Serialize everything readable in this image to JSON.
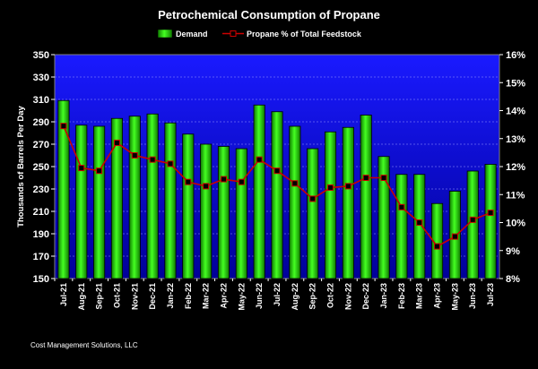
{
  "chart_data": {
    "type": "bar+line",
    "title": "Petrochemical Consumption of Propane",
    "ylabel": "Thousands of Barrels Per Day",
    "ylabel_right": "",
    "footer": "Cost Management Solutions, LLC",
    "categories": [
      "Jul-21",
      "Aug-21",
      "Sep-21",
      "Oct-21",
      "Nov-21",
      "Dec-21",
      "Jan-22",
      "Feb-22",
      "Mar-22",
      "Apr-22",
      "May-22",
      "Jun-22",
      "Jul-22",
      "Aug-22",
      "Sep-22",
      "Oct-22",
      "Nov-22",
      "Dec-22",
      "Jan-23",
      "Feb-23",
      "Mar-23",
      "Apr-23",
      "May-23",
      "Jun-23",
      "Jul-23"
    ],
    "y_left": {
      "min": 150,
      "max": 350,
      "ticks": [
        150,
        170,
        190,
        210,
        230,
        250,
        270,
        290,
        310,
        330,
        350
      ]
    },
    "y_right": {
      "min": 8,
      "max": 16,
      "ticks": [
        "8%",
        "9%",
        "10%",
        "11%",
        "12%",
        "13%",
        "14%",
        "15%",
        "16%"
      ]
    },
    "grid": true,
    "legend_position": "top",
    "series": [
      {
        "name": "Demand",
        "kind": "bar",
        "axis": "left",
        "color": "#22cc00",
        "values": [
          309,
          287,
          286,
          293,
          295,
          297,
          289,
          279,
          270,
          268,
          266,
          305,
          299,
          286,
          266,
          281,
          285,
          296,
          259,
          243,
          243,
          217,
          228,
          246,
          252
        ]
      },
      {
        "name": "Propane % of Total Feedstock",
        "kind": "line",
        "axis": "right",
        "color": "#cc0000",
        "marker_color": "#000000",
        "values": [
          13.45,
          11.95,
          11.85,
          12.85,
          12.4,
          12.25,
          12.1,
          11.45,
          11.3,
          11.55,
          11.45,
          12.25,
          11.85,
          11.4,
          10.85,
          11.25,
          11.3,
          11.6,
          11.6,
          10.55,
          10.0,
          9.15,
          9.5,
          10.1,
          10.35
        ]
      }
    ]
  }
}
